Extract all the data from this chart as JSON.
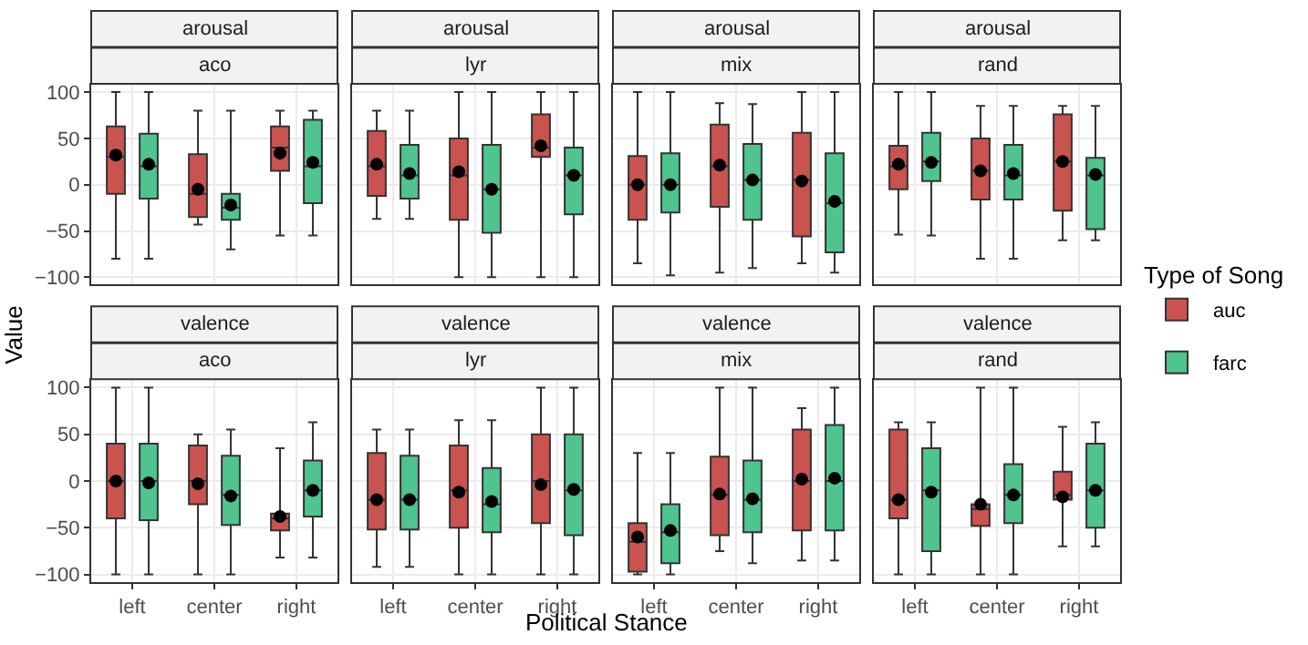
{
  "chart_data": [
    {
      "type": "box",
      "title": "arousal",
      "subtitle": "aco",
      "categories": [
        "left",
        "center",
        "right"
      ],
      "ylabel": "Value",
      "legend_title": "Type of Song",
      "legend": "right",
      "ylim": [
        -108,
        108
      ],
      "yticks": [
        -100,
        -50,
        0,
        50,
        100
      ],
      "grid": true,
      "tick_labels": "y",
      "series": [
        {
          "name": "auc",
          "color": "#c9534f",
          "boxes": [
            {
              "low": -80,
              "q1": -10,
              "median": 30,
              "q3": 63,
              "high": 100,
              "mean": 32
            },
            {
              "low": -43,
              "q1": -35,
              "median": -10,
              "q3": 33,
              "high": 80,
              "mean": -5
            },
            {
              "low": -55,
              "q1": 15,
              "median": 40,
              "q3": 63,
              "high": 80,
              "mean": 34
            }
          ]
        },
        {
          "name": "farc",
          "color": "#4fc48f",
          "boxes": [
            {
              "low": -80,
              "q1": -15,
              "median": 20,
              "q3": 55,
              "high": 100,
              "mean": 22
            },
            {
              "low": -70,
              "q1": -38,
              "median": -25,
              "q3": -10,
              "high": 80,
              "mean": -22
            },
            {
              "low": -55,
              "q1": -20,
              "median": 20,
              "q3": 70,
              "high": 80,
              "mean": 24
            }
          ]
        }
      ]
    },
    {
      "type": "box",
      "title": "arousal",
      "subtitle": "lyr",
      "categories": [
        "left",
        "center",
        "right"
      ],
      "ylim": [
        -108,
        108
      ],
      "yticks": [
        -100,
        -50,
        0,
        50,
        100
      ],
      "grid": true,
      "tick_labels": false,
      "series": [
        {
          "name": "auc",
          "color": "#c9534f",
          "boxes": [
            {
              "low": -37,
              "q1": -12,
              "median": 20,
              "q3": 58,
              "high": 80,
              "mean": 22
            },
            {
              "low": -100,
              "q1": -38,
              "median": 10,
              "q3": 50,
              "high": 100,
              "mean": 14
            },
            {
              "low": -100,
              "q1": 30,
              "median": 40,
              "q3": 76,
              "high": 100,
              "mean": 42
            }
          ]
        },
        {
          "name": "farc",
          "color": "#4fc48f",
          "boxes": [
            {
              "low": -37,
              "q1": -15,
              "median": 10,
              "q3": 43,
              "high": 80,
              "mean": 12
            },
            {
              "low": -100,
              "q1": -52,
              "median": -5,
              "q3": 43,
              "high": 100,
              "mean": -5
            },
            {
              "low": -100,
              "q1": -32,
              "median": 10,
              "q3": 40,
              "high": 100,
              "mean": 10
            }
          ]
        }
      ]
    },
    {
      "type": "box",
      "title": "arousal",
      "subtitle": "mix",
      "categories": [
        "left",
        "center",
        "right"
      ],
      "ylim": [
        -108,
        108
      ],
      "yticks": [
        -100,
        -50,
        0,
        50,
        100
      ],
      "grid": true,
      "tick_labels": false,
      "series": [
        {
          "name": "auc",
          "color": "#c9534f",
          "boxes": [
            {
              "low": -85,
              "q1": -38,
              "median": 0,
              "q3": 31,
              "high": 100,
              "mean": 0
            },
            {
              "low": -95,
              "q1": -24,
              "median": 20,
              "q3": 65,
              "high": 88,
              "mean": 21
            },
            {
              "low": -85,
              "q1": -56,
              "median": 5,
              "q3": 56,
              "high": 100,
              "mean": 4
            }
          ]
        },
        {
          "name": "farc",
          "color": "#4fc48f",
          "boxes": [
            {
              "low": -98,
              "q1": -30,
              "median": 0,
              "q3": 34,
              "high": 100,
              "mean": 0
            },
            {
              "low": -90,
              "q1": -38,
              "median": 5,
              "q3": 44,
              "high": 87,
              "mean": 5
            },
            {
              "low": -95,
              "q1": -73,
              "median": -20,
              "q3": 34,
              "high": 100,
              "mean": -18
            }
          ]
        }
      ]
    },
    {
      "type": "box",
      "title": "arousal",
      "subtitle": "rand",
      "categories": [
        "left",
        "center",
        "right"
      ],
      "ylim": [
        -108,
        108
      ],
      "yticks": [
        -100,
        -50,
        0,
        50,
        100
      ],
      "grid": true,
      "tick_labels": false,
      "series": [
        {
          "name": "auc",
          "color": "#c9534f",
          "boxes": [
            {
              "low": -54,
              "q1": -5,
              "median": 20,
              "q3": 42,
              "high": 100,
              "mean": 22
            },
            {
              "low": -80,
              "q1": -16,
              "median": 15,
              "q3": 50,
              "high": 85,
              "mean": 15
            },
            {
              "low": -60,
              "q1": -28,
              "median": 25,
              "q3": 76,
              "high": 85,
              "mean": 25
            }
          ]
        },
        {
          "name": "farc",
          "color": "#4fc48f",
          "boxes": [
            {
              "low": -55,
              "q1": 4,
              "median": 25,
              "q3": 56,
              "high": 100,
              "mean": 24
            },
            {
              "low": -80,
              "q1": -16,
              "median": 10,
              "q3": 43,
              "high": 85,
              "mean": 12
            },
            {
              "low": -60,
              "q1": -48,
              "median": 10,
              "q3": 29,
              "high": 85,
              "mean": 11
            }
          ]
        }
      ]
    },
    {
      "type": "box",
      "title": "valence",
      "subtitle": "aco",
      "categories": [
        "left",
        "center",
        "right"
      ],
      "ylim": [
        -108,
        108
      ],
      "yticks": [
        -100,
        -50,
        0,
        50,
        100
      ],
      "grid": true,
      "series": [
        {
          "name": "auc",
          "color": "#c9534f",
          "boxes": [
            {
              "low": -100,
              "q1": -40,
              "median": 0,
              "q3": 40,
              "high": 100,
              "mean": 0
            },
            {
              "low": -100,
              "q1": -25,
              "median": 0,
              "q3": 38,
              "high": 50,
              "mean": -3
            },
            {
              "low": -82,
              "q1": -53,
              "median": -40,
              "q3": -35,
              "high": 35,
              "mean": -38
            }
          ]
        },
        {
          "name": "farc",
          "color": "#4fc48f",
          "boxes": [
            {
              "low": -100,
              "q1": -42,
              "median": 0,
              "q3": 40,
              "high": 100,
              "mean": -2
            },
            {
              "low": -100,
              "q1": -47,
              "median": -15,
              "q3": 27,
              "high": 55,
              "mean": -16
            },
            {
              "low": -82,
              "q1": -38,
              "median": -10,
              "q3": 22,
              "high": 63,
              "mean": -10
            }
          ]
        }
      ]
    },
    {
      "type": "box",
      "title": "valence",
      "subtitle": "lyr",
      "categories": [
        "left",
        "center",
        "right"
      ],
      "xlabel": "Political Stance",
      "ylim": [
        -108,
        108
      ],
      "yticks": [
        -100,
        -50,
        0,
        50,
        100
      ],
      "grid": true,
      "tick_labels": "x",
      "series": [
        {
          "name": "auc",
          "color": "#c9534f",
          "boxes": [
            {
              "low": -92,
              "q1": -52,
              "median": -20,
              "q3": 30,
              "high": 55,
              "mean": -20
            },
            {
              "low": -100,
              "q1": -50,
              "median": -10,
              "q3": 38,
              "high": 65,
              "mean": -12
            },
            {
              "low": -100,
              "q1": -45,
              "median": 0,
              "q3": 50,
              "high": 100,
              "mean": -4
            }
          ]
        },
        {
          "name": "farc",
          "color": "#4fc48f",
          "boxes": [
            {
              "low": -92,
              "q1": -52,
              "median": -20,
              "q3": 27,
              "high": 55,
              "mean": -20
            },
            {
              "low": -100,
              "q1": -55,
              "median": -25,
              "q3": 14,
              "high": 65,
              "mean": -22
            },
            {
              "low": -100,
              "q1": -58,
              "median": -10,
              "q3": 50,
              "high": 100,
              "mean": -9
            }
          ]
        }
      ]
    },
    {
      "type": "box",
      "title": "valence",
      "subtitle": "mix",
      "categories": [
        "left",
        "center",
        "right"
      ],
      "ylim": [
        -108,
        108
      ],
      "yticks": [
        -100,
        -50,
        0,
        50,
        100
      ],
      "grid": true,
      "tick_labels": "x",
      "series": [
        {
          "name": "auc",
          "color": "#c9534f",
          "boxes": [
            {
              "low": -100,
              "q1": -97,
              "median": -65,
              "q3": -45,
              "high": 30,
              "mean": -60
            },
            {
              "low": -75,
              "q1": -58,
              "median": -15,
              "q3": 26,
              "high": 100,
              "mean": -14
            },
            {
              "low": -85,
              "q1": -53,
              "median": 0,
              "q3": 55,
              "high": 78,
              "mean": 2
            }
          ]
        },
        {
          "name": "farc",
          "color": "#4fc48f",
          "boxes": [
            {
              "low": -100,
              "q1": -88,
              "median": -55,
              "q3": -25,
              "high": 30,
              "mean": -53
            },
            {
              "low": -88,
              "q1": -55,
              "median": -20,
              "q3": 22,
              "high": 100,
              "mean": -19
            },
            {
              "low": -85,
              "q1": -53,
              "median": 0,
              "q3": 60,
              "high": 100,
              "mean": 3
            }
          ]
        }
      ]
    },
    {
      "type": "box",
      "title": "valence",
      "subtitle": "rand",
      "categories": [
        "left",
        "center",
        "right"
      ],
      "ylim": [
        -108,
        108
      ],
      "yticks": [
        -100,
        -50,
        0,
        50,
        100
      ],
      "grid": true,
      "tick_labels": "x",
      "series": [
        {
          "name": "auc",
          "color": "#c9534f",
          "boxes": [
            {
              "low": -100,
              "q1": -40,
              "median": -20,
              "q3": 55,
              "high": 63,
              "mean": -20
            },
            {
              "low": -100,
              "q1": -48,
              "median": -30,
              "q3": -25,
              "high": 100,
              "mean": -25
            },
            {
              "low": -70,
              "q1": -20,
              "median": -15,
              "q3": 10,
              "high": 58,
              "mean": -17
            }
          ]
        },
        {
          "name": "farc",
          "color": "#4fc48f",
          "boxes": [
            {
              "low": -100,
              "q1": -75,
              "median": -10,
              "q3": 35,
              "high": 63,
              "mean": -12
            },
            {
              "low": -100,
              "q1": -45,
              "median": -15,
              "q3": 18,
              "high": 100,
              "mean": -15
            },
            {
              "low": -70,
              "q1": -50,
              "median": -10,
              "q3": 40,
              "high": 63,
              "mean": -10
            }
          ]
        }
      ]
    }
  ]
}
